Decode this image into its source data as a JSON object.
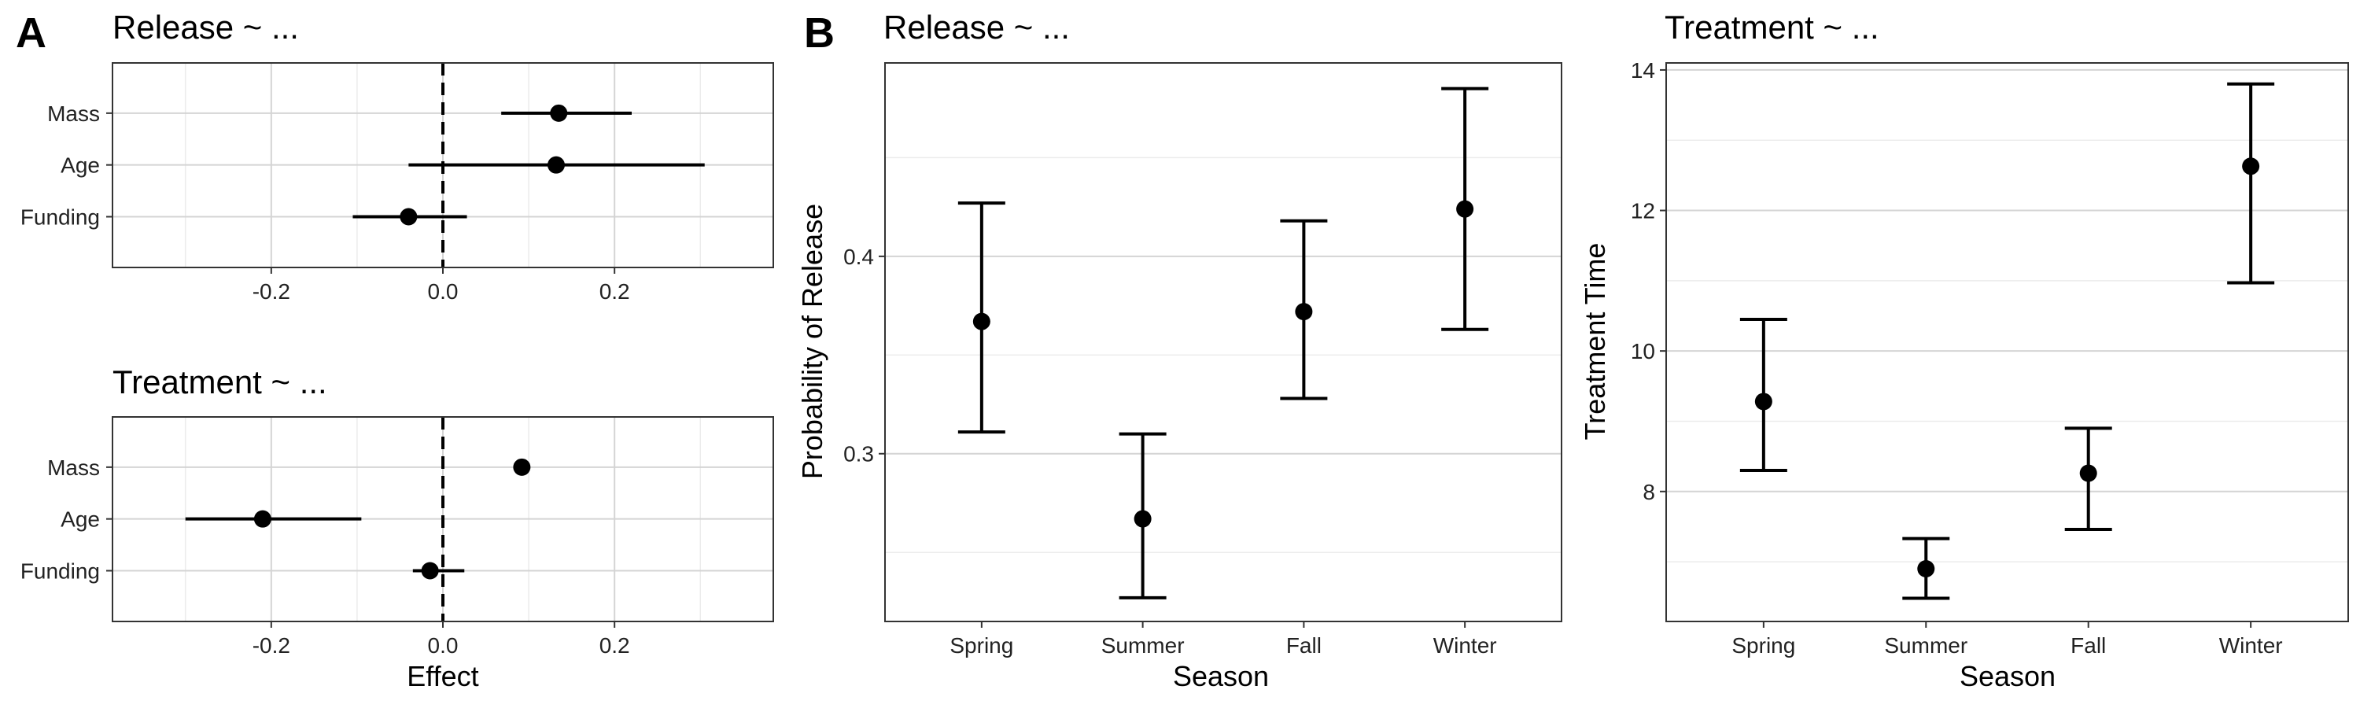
{
  "panel_letters": {
    "a": "A",
    "b": "B"
  },
  "chart_data": [
    {
      "id": "release-effects",
      "type": "scatter",
      "title": "Release ~ ...",
      "orientation": "horizontal",
      "categories": [
        "Mass",
        "Age",
        "Funding"
      ],
      "points": [
        {
          "category": "Mass",
          "estimate": 0.135,
          "low": 0.068,
          "high": 0.22
        },
        {
          "category": "Age",
          "estimate": 0.132,
          "low": -0.04,
          "high": 0.305
        },
        {
          "category": "Funding",
          "estimate": -0.04,
          "low": -0.105,
          "high": 0.028
        }
      ],
      "xlim": [
        -0.385,
        0.385
      ],
      "xticks": [
        -0.2,
        0.0,
        0.2
      ],
      "xtick_labels": [
        "-0.2",
        "0.0",
        "0.2"
      ],
      "reference_line": 0,
      "xlabel": "",
      "grid": true
    },
    {
      "id": "treatment-effects",
      "type": "scatter",
      "title": "Treatment ~ ...",
      "orientation": "horizontal",
      "categories": [
        "Mass",
        "Age",
        "Funding"
      ],
      "points": [
        {
          "category": "Mass",
          "estimate": 0.092,
          "low": null,
          "high": null
        },
        {
          "category": "Age",
          "estimate": -0.21,
          "low": -0.3,
          "high": -0.095
        },
        {
          "category": "Funding",
          "estimate": -0.015,
          "low": -0.035,
          "high": 0.025
        }
      ],
      "xlim": [
        -0.385,
        0.385
      ],
      "xticks": [
        -0.2,
        0.0,
        0.2
      ],
      "xtick_labels": [
        "-0.2",
        "0.0",
        "0.2"
      ],
      "reference_line": 0,
      "xlabel": "Effect",
      "grid": true
    },
    {
      "id": "release-season",
      "type": "scatter",
      "title": "Release ~ ...",
      "categories": [
        "Spring",
        "Summer",
        "Fall",
        "Winter"
      ],
      "points": [
        {
          "category": "Spring",
          "estimate": 0.367,
          "low": 0.311,
          "high": 0.427
        },
        {
          "category": "Summer",
          "estimate": 0.267,
          "low": 0.227,
          "high": 0.31
        },
        {
          "category": "Fall",
          "estimate": 0.372,
          "low": 0.328,
          "high": 0.418
        },
        {
          "category": "Winter",
          "estimate": 0.424,
          "low": 0.363,
          "high": 0.485
        }
      ],
      "ylim": [
        0.215,
        0.498
      ],
      "yticks": [
        0.3,
        0.4
      ],
      "ytick_labels": [
        "0.3",
        "0.4"
      ],
      "yminor": [
        0.25,
        0.35,
        0.45
      ],
      "xlabel": "Season",
      "ylabel": "Probability of Release",
      "grid": true
    },
    {
      "id": "treatment-season",
      "type": "scatter",
      "title": "Treatment ~ ...",
      "categories": [
        "Spring",
        "Summer",
        "Fall",
        "Winter"
      ],
      "points": [
        {
          "category": "Spring",
          "estimate": 9.28,
          "low": 8.3,
          "high": 10.45
        },
        {
          "category": "Summer",
          "estimate": 6.9,
          "low": 6.48,
          "high": 7.33
        },
        {
          "category": "Fall",
          "estimate": 8.26,
          "low": 7.46,
          "high": 8.9
        },
        {
          "category": "Winter",
          "estimate": 12.63,
          "low": 10.97,
          "high": 13.8
        }
      ],
      "ylim": [
        6.15,
        14.1
      ],
      "yticks": [
        8,
        10,
        12,
        14
      ],
      "ytick_labels": [
        "8",
        "10",
        "12",
        "14"
      ],
      "yminor": [
        7,
        9,
        11,
        13
      ],
      "xlabel": "Season",
      "ylabel": "Treatment Time",
      "grid": true
    }
  ]
}
